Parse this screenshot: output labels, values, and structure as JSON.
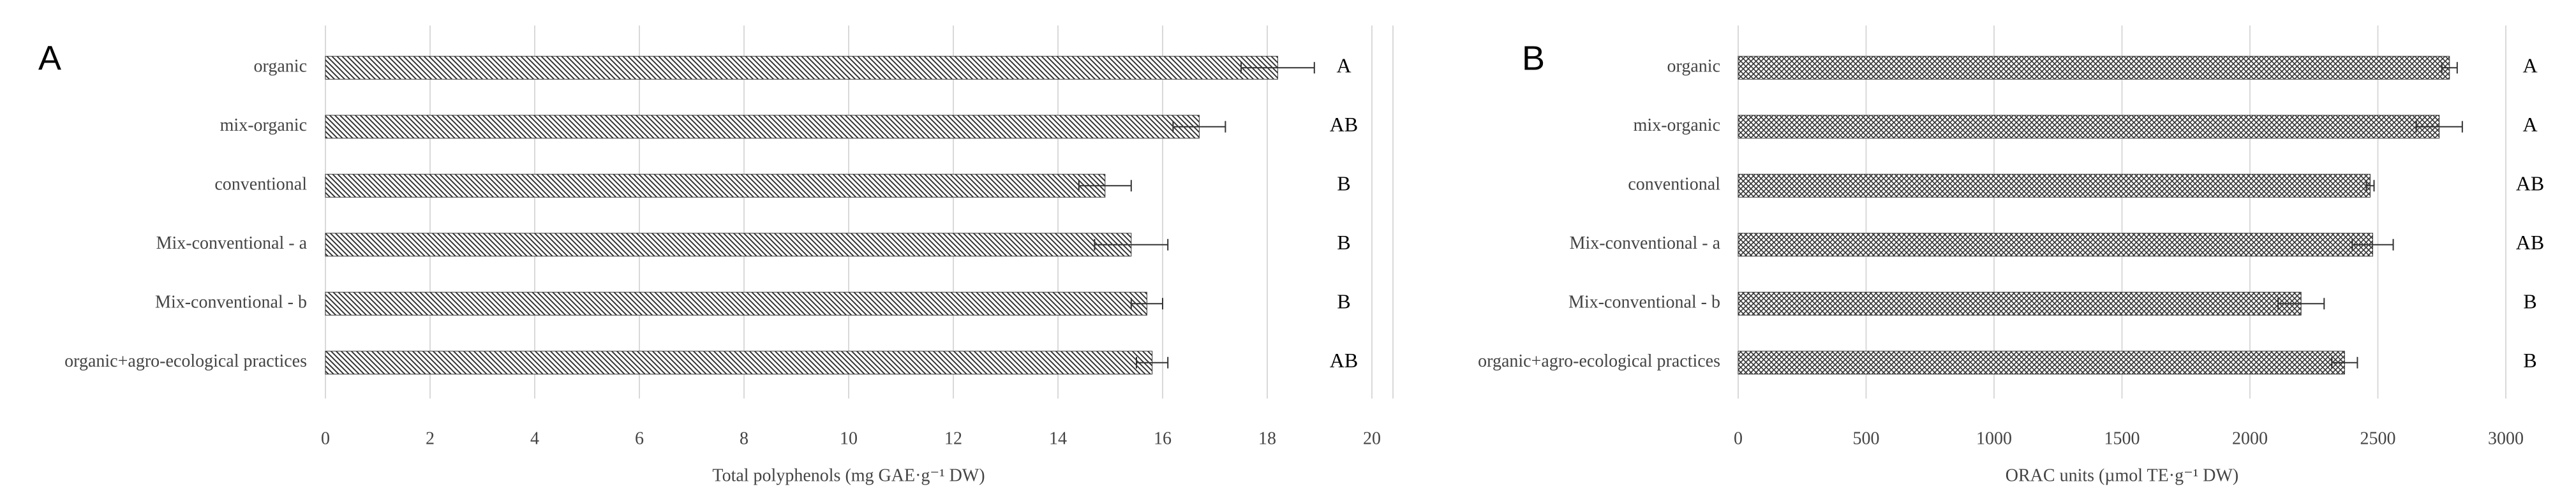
{
  "chart_data": [
    {
      "type": "bar",
      "orientation": "horizontal",
      "panel_label": "A",
      "categories": [
        "organic",
        "mix-organic",
        "conventional",
        "Mix-conventional - a",
        "Mix-conventional - b",
        "organic+agro-ecological practices"
      ],
      "values": [
        18.2,
        16.7,
        14.9,
        15.4,
        15.7,
        15.8
      ],
      "errors": [
        0.7,
        0.5,
        0.5,
        0.7,
        0.3,
        0.3
      ],
      "letters": [
        "A",
        "AB",
        "B",
        "B",
        "B",
        "AB"
      ],
      "xlabel": "Total polyphenols (mg GAE·g⁻¹ DW)",
      "xlim": [
        0,
        20
      ],
      "xticks": [
        0,
        2,
        4,
        6,
        8,
        10,
        12,
        14,
        16,
        18,
        20
      ],
      "grid": true,
      "color": "#333333",
      "hatch": "diagonal"
    },
    {
      "type": "bar",
      "orientation": "horizontal",
      "panel_label": "B",
      "categories": [
        "organic",
        "mix-organic",
        "conventional",
        "Mix-conventional - a",
        "Mix-conventional - b",
        "organic+agro-ecological practices"
      ],
      "values": [
        2780,
        2740,
        2470,
        2480,
        2200,
        2370
      ],
      "errors": [
        30,
        90,
        15,
        80,
        90,
        50
      ],
      "letters": [
        "A",
        "A",
        "AB",
        "AB",
        "B",
        "B"
      ],
      "xlabel": "ORAC units (µmol TE·g⁻¹ DW)",
      "xlim": [
        0,
        3000
      ],
      "xticks": [
        0,
        500,
        1000,
        1500,
        2000,
        2500,
        3000
      ],
      "grid": true,
      "color": "#333333",
      "hatch": "cross"
    }
  ]
}
